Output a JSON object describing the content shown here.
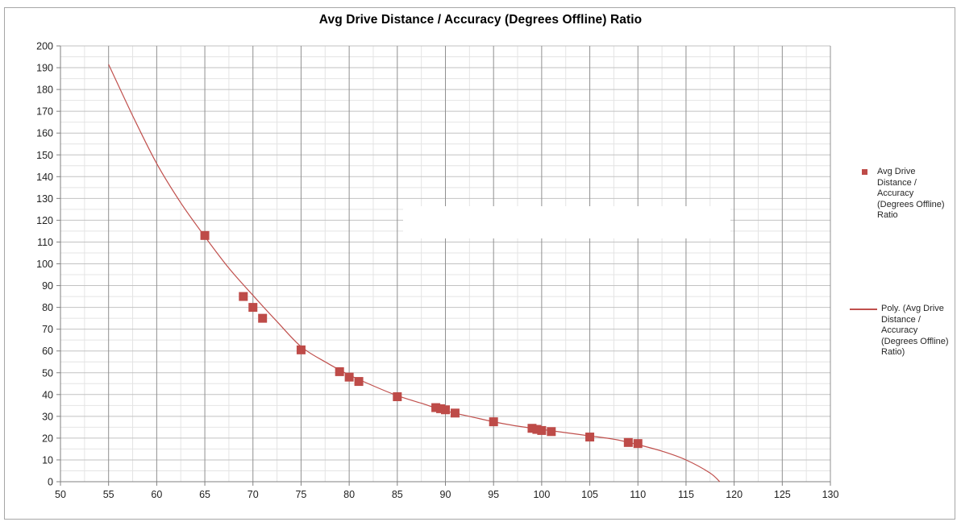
{
  "chart_data": {
    "type": "scatter",
    "title": "Avg Drive Distance / Accuracy (Degrees Offline) Ratio",
    "legend_position": "right",
    "grid": "major-and-minor",
    "x_axis": {
      "min": 50,
      "max": 130,
      "major_step": 5,
      "minor_step": 2.5,
      "ticks": [
        50,
        55,
        60,
        65,
        70,
        75,
        80,
        85,
        90,
        95,
        100,
        105,
        110,
        115,
        120,
        125,
        130
      ]
    },
    "y_axis": {
      "min": 0,
      "max": 200,
      "major_step": 10,
      "minor_step": 5,
      "ticks": [
        0,
        10,
        20,
        30,
        40,
        50,
        60,
        70,
        80,
        90,
        100,
        110,
        120,
        130,
        140,
        150,
        160,
        170,
        180,
        190,
        200
      ]
    },
    "series": [
      {
        "name": "Avg Drive Distance / Accuracy (Degrees Offline) Ratio",
        "marker": "square",
        "color": "#be4b48",
        "points": [
          [
            65,
            113
          ],
          [
            69,
            85
          ],
          [
            70,
            80
          ],
          [
            71,
            75
          ],
          [
            75,
            60.5
          ],
          [
            79,
            50.5
          ],
          [
            80,
            48
          ],
          [
            81,
            46
          ],
          [
            85,
            39
          ],
          [
            89,
            34
          ],
          [
            89.5,
            33.5
          ],
          [
            90,
            33
          ],
          [
            91,
            31.5
          ],
          [
            95,
            27.5
          ],
          [
            99,
            24.5
          ],
          [
            99.5,
            24
          ],
          [
            100,
            23.5
          ],
          [
            101,
            23
          ],
          [
            105,
            20.5
          ],
          [
            109,
            18
          ],
          [
            110,
            17.5
          ]
        ]
      }
    ],
    "trendline": {
      "name": "Poly. (Avg Drive Distance / Accuracy (Degrees Offline) Ratio)",
      "type": "polynomial",
      "color": "#c0504d",
      "points": [
        [
          55,
          191.5
        ],
        [
          57.5,
          168
        ],
        [
          60,
          146
        ],
        [
          62.5,
          128
        ],
        [
          65,
          112.5
        ],
        [
          67.5,
          98
        ],
        [
          70,
          85.5
        ],
        [
          72.5,
          73.5
        ],
        [
          75,
          62
        ],
        [
          77.5,
          55
        ],
        [
          80,
          49
        ],
        [
          82.5,
          44
        ],
        [
          85,
          39.5
        ],
        [
          87.5,
          36
        ],
        [
          90,
          32.5
        ],
        [
          92.5,
          30
        ],
        [
          95,
          27.5
        ],
        [
          97.5,
          25.5
        ],
        [
          100,
          24
        ],
        [
          102.5,
          22.5
        ],
        [
          105,
          21
        ],
        [
          107.5,
          19.5
        ],
        [
          110,
          17
        ],
        [
          112.5,
          14
        ],
        [
          115,
          10
        ],
        [
          117.5,
          4
        ],
        [
          118.5,
          0
        ]
      ]
    },
    "legend": [
      {
        "marker": "square",
        "label": "Avg Drive Distance / Accuracy (Degrees Offline) Ratio"
      },
      {
        "marker": "line",
        "label": "Poly. (Avg Drive Distance / Accuracy (Degrees Offline) Ratio)"
      }
    ]
  },
  "colors": {
    "series_marker": "#be4b48",
    "trendline": "#c0504d",
    "axis": "#808080",
    "gridline_major_v": "#909090",
    "gridline_major_h": "#c2c2c2",
    "gridline_minor": "#e4e4e4",
    "tick_label": "#1f1f1f",
    "frame_border": "#a6a6a6"
  }
}
